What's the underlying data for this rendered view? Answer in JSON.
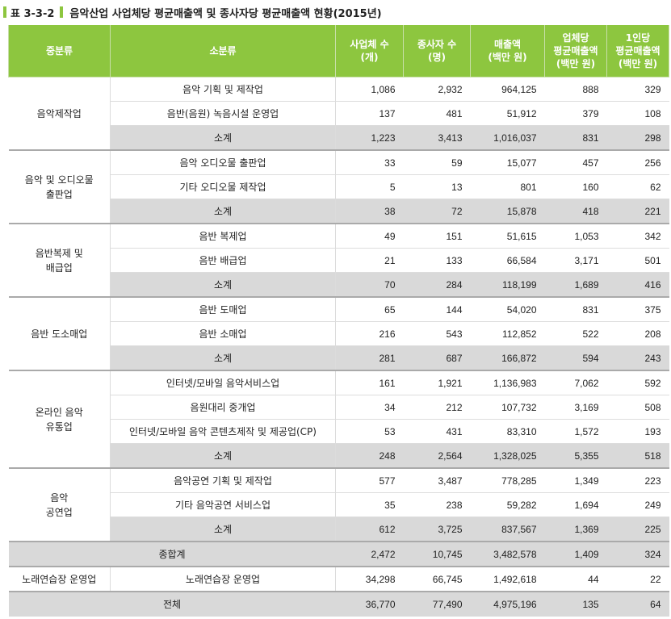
{
  "caption": {
    "label": "표 3-3-2",
    "title": "음악산업 사업체당 평균매출액 및 종사자당 평균매출액 현황(2015년)"
  },
  "headers": [
    "중분류",
    "소분류",
    "사업체 수\n(개)",
    "종사자 수\n(명)",
    "매출액\n(백만 원)",
    "업체당\n평균매출액\n(백만 원)",
    "1인당\n평균매출액\n(백만 원)"
  ],
  "groups": [
    {
      "category": "음악제작업",
      "rows": [
        {
          "name": "음악 기획 및 제작업",
          "values": [
            "1,086",
            "2,932",
            "964,125",
            "888",
            "329"
          ]
        },
        {
          "name": "음반(음원) 녹음시설 운영업",
          "values": [
            "137",
            "481",
            "51,912",
            "379",
            "108"
          ]
        }
      ],
      "subtotal": {
        "name": "소계",
        "values": [
          "1,223",
          "3,413",
          "1,016,037",
          "831",
          "298"
        ]
      }
    },
    {
      "category": "음악 및 오디오물\n출판업",
      "rows": [
        {
          "name": "음악 오디오물 출판업",
          "values": [
            "33",
            "59",
            "15,077",
            "457",
            "256"
          ]
        },
        {
          "name": "기타 오디오물 제작업",
          "values": [
            "5",
            "13",
            "801",
            "160",
            "62"
          ]
        }
      ],
      "subtotal": {
        "name": "소계",
        "values": [
          "38",
          "72",
          "15,878",
          "418",
          "221"
        ]
      }
    },
    {
      "category": "음반복제 및\n배급업",
      "rows": [
        {
          "name": "음반 복제업",
          "values": [
            "49",
            "151",
            "51,615",
            "1,053",
            "342"
          ]
        },
        {
          "name": "음반 배급업",
          "values": [
            "21",
            "133",
            "66,584",
            "3,171",
            "501"
          ]
        }
      ],
      "subtotal": {
        "name": "소계",
        "values": [
          "70",
          "284",
          "118,199",
          "1,689",
          "416"
        ]
      }
    },
    {
      "category": "음반 도소매업",
      "rows": [
        {
          "name": "음반 도매업",
          "values": [
            "65",
            "144",
            "54,020",
            "831",
            "375"
          ]
        },
        {
          "name": "음반 소매업",
          "values": [
            "216",
            "543",
            "112,852",
            "522",
            "208"
          ]
        }
      ],
      "subtotal": {
        "name": "소계",
        "values": [
          "281",
          "687",
          "166,872",
          "594",
          "243"
        ]
      }
    },
    {
      "category": "온라인 음악\n유통업",
      "rows": [
        {
          "name": "인터넷/모바일 음악서비스업",
          "values": [
            "161",
            "1,921",
            "1,136,983",
            "7,062",
            "592"
          ]
        },
        {
          "name": "음원대리 중개업",
          "values": [
            "34",
            "212",
            "107,732",
            "3,169",
            "508"
          ]
        },
        {
          "name": "인터넷/모바일 음악 콘텐츠제작 및 제공업(CP)",
          "values": [
            "53",
            "431",
            "83,310",
            "1,572",
            "193"
          ]
        }
      ],
      "subtotal": {
        "name": "소계",
        "values": [
          "248",
          "2,564",
          "1,328,025",
          "5,355",
          "518"
        ]
      }
    },
    {
      "category": "음악\n공연업",
      "rows": [
        {
          "name": "음악공연 기획 및 제작업",
          "values": [
            "577",
            "3,487",
            "778,285",
            "1,349",
            "223"
          ]
        },
        {
          "name": "기타 음악공연 서비스업",
          "values": [
            "35",
            "238",
            "59,282",
            "1,694",
            "249"
          ]
        }
      ],
      "subtotal": {
        "name": "소계",
        "values": [
          "612",
          "3,725",
          "837,567",
          "1,369",
          "225"
        ]
      }
    }
  ],
  "grand_subtotal": {
    "name": "종합계",
    "values": [
      "2,472",
      "10,745",
      "3,482,578",
      "1,409",
      "324"
    ]
  },
  "karaoke": {
    "category": "노래연습장 운영업",
    "name": "노래연습장 운영업",
    "values": [
      "34,298",
      "66,745",
      "1,492,618",
      "44",
      "22"
    ]
  },
  "total": {
    "name": "전체",
    "values": [
      "36,770",
      "77,490",
      "4,975,196",
      "135",
      "64"
    ]
  },
  "colors": {
    "header": "#8dc63f",
    "subtotal_bg": "#d9d9d9"
  }
}
